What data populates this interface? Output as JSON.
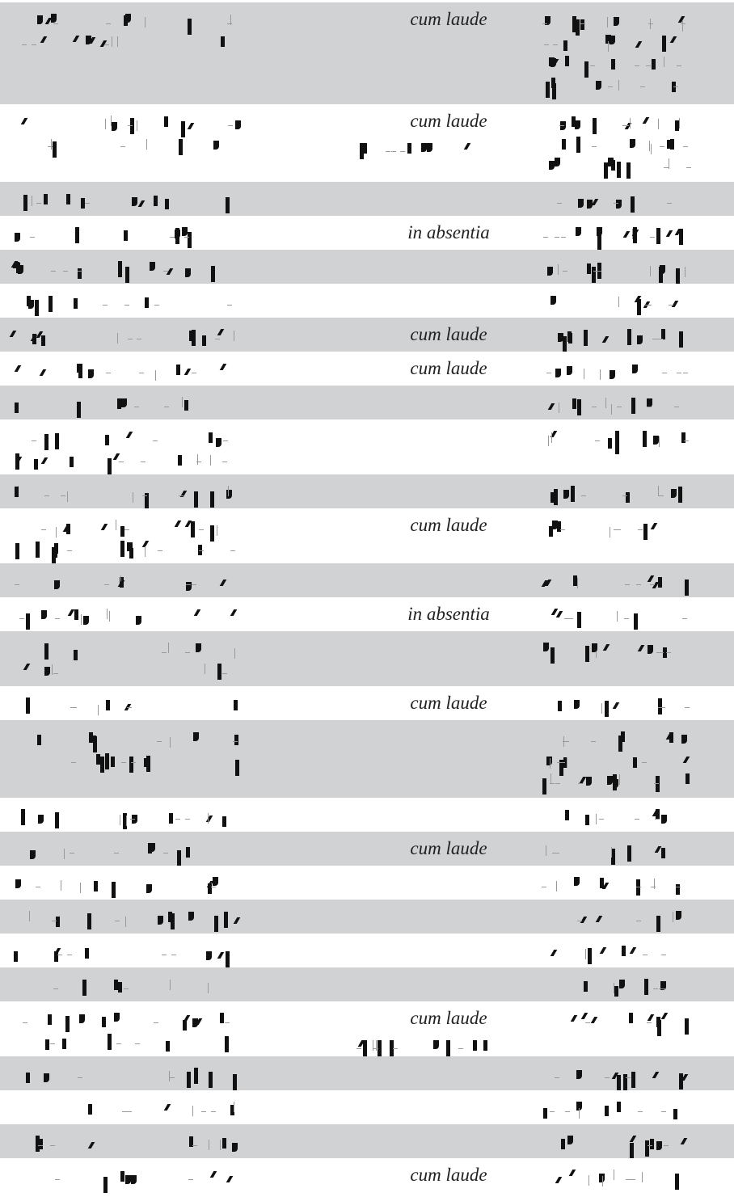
{
  "rows": [
    {
      "h": 126,
      "shade": "odd",
      "honor": "cum laude",
      "honor_addon": false,
      "c3_lines": 4
    },
    {
      "h": 96,
      "shade": "even",
      "honor": "cum laude",
      "honor_addon": true,
      "c3_lines": 3
    },
    {
      "h": 42,
      "shade": "odd",
      "honor": "",
      "honor_addon": false,
      "c3_lines": 1
    },
    {
      "h": 42,
      "shade": "even",
      "honor": "in absentia",
      "honor_addon": false,
      "c3_lines": 1
    },
    {
      "h": 42,
      "shade": "odd",
      "honor": "",
      "honor_addon": false,
      "c3_lines": 1
    },
    {
      "h": 42,
      "shade": "even",
      "honor": "",
      "honor_addon": false,
      "c3_lines": 1
    },
    {
      "h": 42,
      "shade": "odd",
      "honor": "cum laude",
      "honor_addon": false,
      "c3_lines": 1
    },
    {
      "h": 42,
      "shade": "even",
      "honor": "cum laude",
      "honor_addon": false,
      "c3_lines": 1
    },
    {
      "h": 42,
      "shade": "odd",
      "honor": "",
      "honor_addon": false,
      "c3_lines": 1
    },
    {
      "h": 68,
      "shade": "even",
      "honor": "",
      "honor_addon": false,
      "c3_lines": 1
    },
    {
      "h": 42,
      "shade": "odd",
      "honor": "",
      "honor_addon": false,
      "c3_lines": 1
    },
    {
      "h": 68,
      "shade": "even",
      "honor": "cum laude",
      "honor_addon": false,
      "c3_lines": 1
    },
    {
      "h": 42,
      "shade": "odd",
      "honor": "",
      "honor_addon": false,
      "c3_lines": 1
    },
    {
      "h": 42,
      "shade": "even",
      "honor": "in absentia",
      "honor_addon": false,
      "c3_lines": 1
    },
    {
      "h": 68,
      "shade": "odd",
      "honor": "",
      "honor_addon": false,
      "c3_lines": 1
    },
    {
      "h": 42,
      "shade": "even",
      "honor": "cum laude",
      "honor_addon": false,
      "c3_lines": 1
    },
    {
      "h": 96,
      "shade": "odd",
      "honor": "",
      "honor_addon": false,
      "c3_lines": 3
    },
    {
      "h": 42,
      "shade": "even",
      "honor": "",
      "honor_addon": false,
      "c3_lines": 1
    },
    {
      "h": 42,
      "shade": "odd",
      "honor": "cum laude",
      "honor_addon": false,
      "c3_lines": 1
    },
    {
      "h": 42,
      "shade": "even",
      "honor": "",
      "honor_addon": false,
      "c3_lines": 1
    },
    {
      "h": 42,
      "shade": "odd",
      "honor": "",
      "honor_addon": false,
      "c3_lines": 1
    },
    {
      "h": 42,
      "shade": "even",
      "honor": "",
      "honor_addon": false,
      "c3_lines": 1
    },
    {
      "h": 42,
      "shade": "odd",
      "honor": "",
      "honor_addon": false,
      "c3_lines": 1
    },
    {
      "h": 68,
      "shade": "even",
      "honor": "cum laude",
      "honor_addon": true,
      "c3_lines": 1
    },
    {
      "h": 42,
      "shade": "odd",
      "honor": "",
      "honor_addon": false,
      "c3_lines": 1
    },
    {
      "h": 42,
      "shade": "even",
      "honor": "",
      "honor_addon": false,
      "c3_lines": 1
    },
    {
      "h": 42,
      "shade": "odd",
      "honor": "",
      "honor_addon": false,
      "c3_lines": 1
    },
    {
      "h": 42,
      "shade": "even",
      "honor": "cum laude",
      "honor_addon": false,
      "c3_lines": 1
    }
  ]
}
